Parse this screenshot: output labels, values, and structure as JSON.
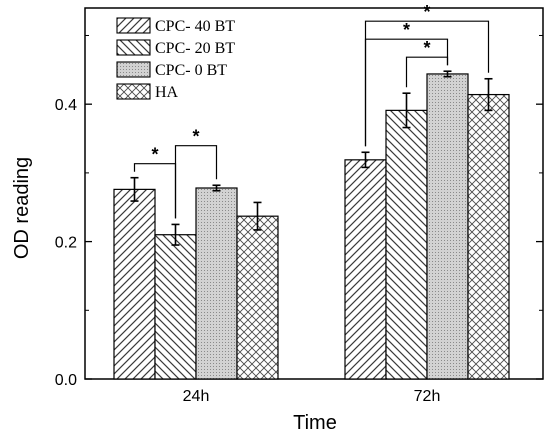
{
  "chart_data": {
    "type": "bar",
    "title": "",
    "xlabel": "Time",
    "ylabel": "OD reading",
    "categories": [
      "24h",
      "72h"
    ],
    "ylim": [
      0,
      0.54
    ],
    "yticks": [
      0.0,
      0.2,
      0.4
    ],
    "ytick_labels": [
      "0.0",
      "0.2",
      "0.4"
    ],
    "grid": false,
    "legend_position": "top-left",
    "series": [
      {
        "name": "CPC- 40 BT",
        "values": [
          0.276,
          0.319
        ],
        "errors": [
          0.017,
          0.011
        ],
        "pattern": "hatch-forward"
      },
      {
        "name": "CPC- 20 BT",
        "values": [
          0.21,
          0.391
        ],
        "errors": [
          0.015,
          0.025
        ],
        "pattern": "hatch-backward"
      },
      {
        "name": "CPC- 0 BT",
        "values": [
          0.278,
          0.444
        ],
        "errors": [
          0.004,
          0.004
        ],
        "pattern": "dots"
      },
      {
        "name": "HA",
        "values": [
          0.237,
          0.414
        ],
        "errors": [
          0.02,
          0.023
        ],
        "pattern": "crosshatch"
      }
    ],
    "significance": [
      {
        "category": 0,
        "from": 0,
        "to": 1,
        "label": "*"
      },
      {
        "category": 0,
        "from": 1,
        "to": 2,
        "label": "*"
      },
      {
        "category": 1,
        "from": 1,
        "to": 2,
        "label": "*"
      },
      {
        "category": 1,
        "from": 0,
        "to": 2,
        "label": "*"
      },
      {
        "category": 1,
        "from": 0,
        "to": 3,
        "label": "*"
      }
    ]
  }
}
